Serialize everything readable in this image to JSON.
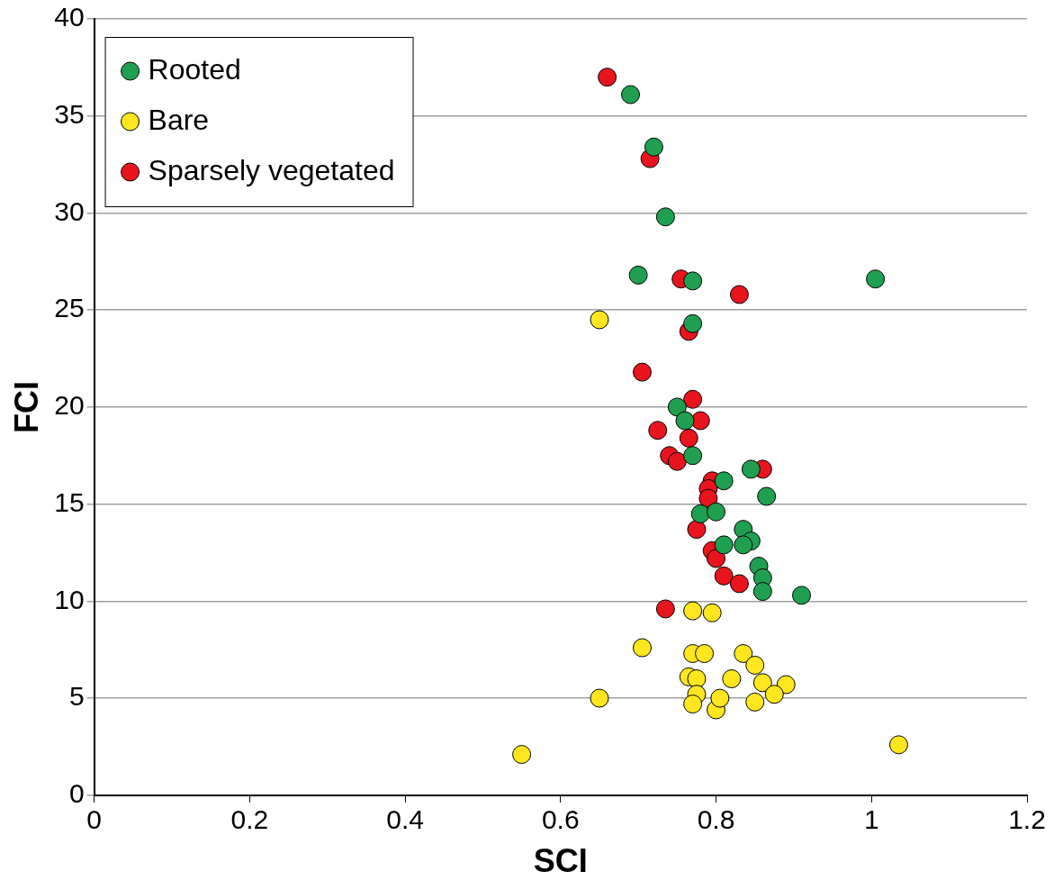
{
  "chart_data": {
    "type": "scatter",
    "x_label": "SCI",
    "y_label": "FCI",
    "xlim": [
      0,
      1.2
    ],
    "xticks": [
      0,
      0.2,
      0.4,
      0.6,
      0.8,
      1,
      1.2
    ],
    "ylim": [
      0,
      40
    ],
    "yticks": [
      0,
      5,
      10,
      15,
      20,
      25,
      30,
      35,
      40
    ],
    "grid": "y",
    "legend": "top-left",
    "marker": "circle",
    "series": [
      {
        "name": "Rooted",
        "color": "#1fa050",
        "x": [
          0.69,
          0.72,
          0.735,
          0.7,
          0.77,
          1.005,
          0.77,
          0.75,
          0.76,
          0.77,
          0.845,
          0.81,
          0.865,
          0.78,
          0.8,
          0.81,
          0.835,
          0.845,
          0.835,
          0.855,
          0.86,
          0.86,
          0.91
        ],
        "values": [
          36.1,
          33.4,
          29.8,
          26.8,
          26.5,
          26.6,
          24.3,
          20.0,
          19.3,
          17.5,
          16.8,
          16.2,
          15.4,
          14.5,
          14.6,
          12.9,
          13.7,
          13.1,
          12.9,
          11.8,
          11.2,
          10.5,
          10.3
        ]
      },
      {
        "name": "Bare",
        "color": "#ffe61e",
        "x": [
          0.65,
          0.77,
          0.795,
          0.705,
          0.77,
          0.785,
          0.835,
          0.85,
          0.765,
          0.775,
          0.82,
          0.86,
          0.89,
          0.875,
          0.65,
          0.775,
          0.77,
          0.8,
          0.805,
          0.85,
          0.55,
          1.035
        ],
        "values": [
          24.5,
          9.5,
          9.4,
          7.6,
          7.3,
          7.3,
          7.3,
          6.7,
          6.1,
          6.0,
          6.0,
          5.8,
          5.7,
          5.2,
          5.0,
          5.2,
          4.7,
          4.4,
          5.0,
          4.8,
          2.1,
          2.6
        ]
      },
      {
        "name": "Sparsely vegetated",
        "color": "#e8141e",
        "x": [
          0.66,
          0.715,
          0.755,
          0.83,
          0.765,
          0.705,
          0.77,
          0.78,
          0.725,
          0.765,
          0.74,
          0.75,
          0.795,
          0.79,
          0.86,
          0.79,
          0.775,
          0.795,
          0.8,
          0.81,
          0.83,
          0.735
        ],
        "values": [
          37.0,
          32.8,
          26.6,
          25.8,
          23.9,
          21.8,
          20.4,
          19.3,
          18.8,
          18.4,
          17.5,
          17.2,
          16.2,
          15.8,
          16.8,
          15.3,
          13.7,
          12.6,
          12.2,
          11.3,
          10.9,
          9.6
        ]
      }
    ]
  }
}
